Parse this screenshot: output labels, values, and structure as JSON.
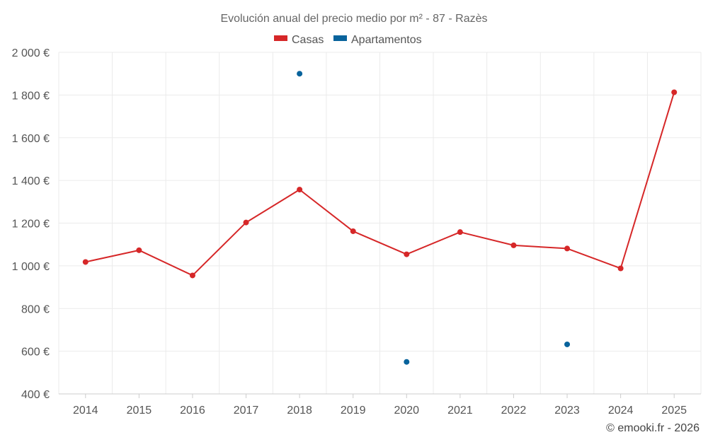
{
  "chart_data": {
    "type": "line",
    "title": "Evolución anual del precio medio por m² - 87 - Razès",
    "categories": [
      "2014",
      "2015",
      "2016",
      "2017",
      "2018",
      "2019",
      "2020",
      "2021",
      "2022",
      "2023",
      "2024",
      "2025"
    ],
    "ylim": [
      400,
      2000
    ],
    "yticks": [
      400,
      600,
      800,
      1000,
      1200,
      1400,
      1600,
      1800,
      2000
    ],
    "ytick_labels": [
      "400 €",
      "600 €",
      "800 €",
      "1 000 €",
      "1 200 €",
      "1 400 €",
      "1 600 €",
      "1 800 €",
      "2 000 €"
    ],
    "grid": true,
    "legend_position": "top-center",
    "series": [
      {
        "name": "Casas",
        "color": "#d62728",
        "style": "line",
        "values": [
          1018,
          1073,
          955,
          1203,
          1357,
          1162,
          1054,
          1158,
          1096,
          1081,
          988,
          1813
        ]
      },
      {
        "name": "Apartamentos",
        "color": "#08639c",
        "style": "points",
        "values": [
          null,
          null,
          null,
          null,
          1900,
          null,
          550,
          null,
          null,
          632,
          null,
          null
        ]
      }
    ]
  },
  "credit": "© emooki.fr - 2026"
}
